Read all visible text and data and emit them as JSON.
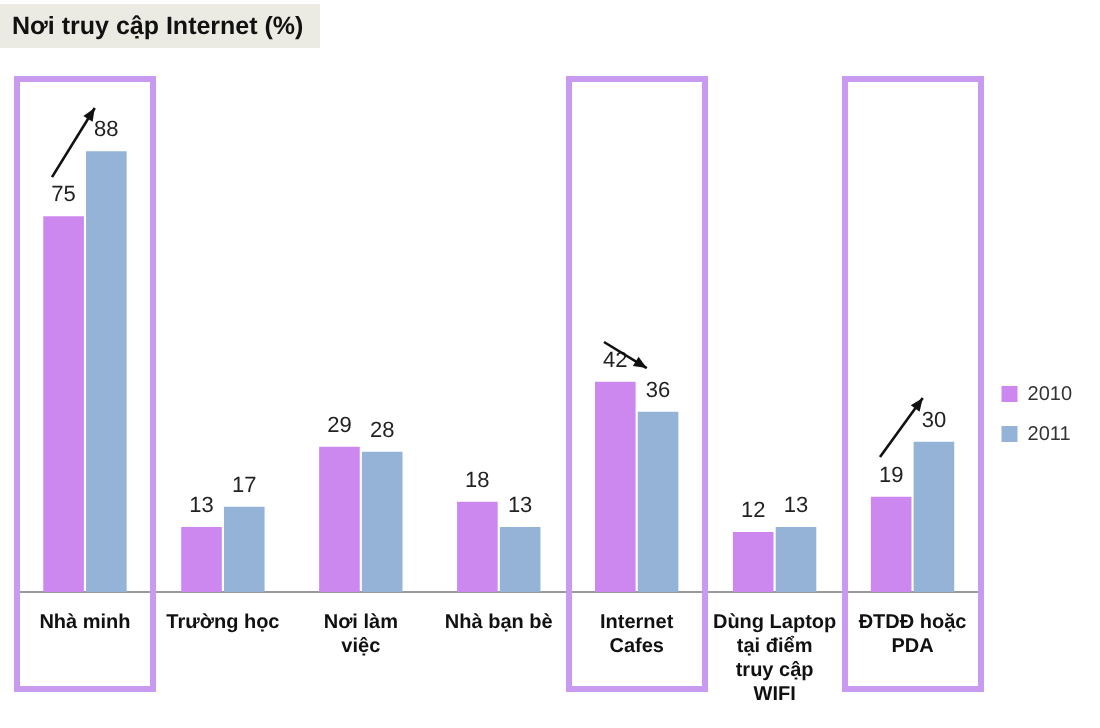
{
  "chart_data": {
    "type": "bar",
    "title": "Nơi truy cập Internet (%)",
    "categories": [
      "Nhà minh",
      "Trường học",
      "Nơi làm việc",
      "Nhà bạn bè",
      "Internet Cafes",
      "Dùng Laptop tại điểm truy cập WIFI",
      "ĐTDĐ hoặc PDA"
    ],
    "series": [
      {
        "name": "2010",
        "color": "#cc88ee",
        "values": [
          75,
          13,
          29,
          18,
          42,
          12,
          19
        ]
      },
      {
        "name": "2011",
        "color": "#95b3d7",
        "values": [
          88,
          17,
          28,
          13,
          36,
          13,
          30
        ]
      }
    ],
    "data_labels": true,
    "grid": false,
    "legend": "right"
  }
}
